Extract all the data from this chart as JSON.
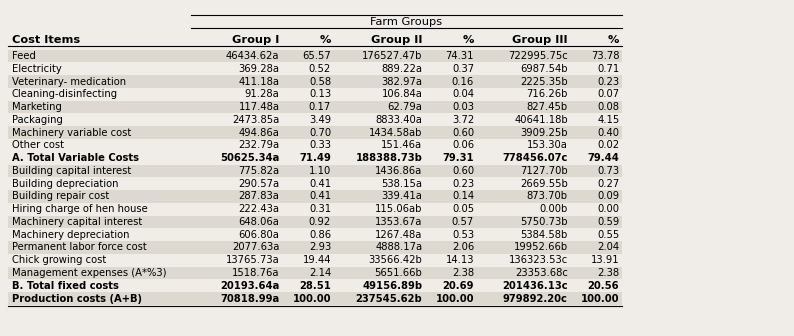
{
  "title": "Farm Groups",
  "col_headers": [
    "Cost Items",
    "Group I",
    "%",
    "Group II",
    "%",
    "Group III",
    "%"
  ],
  "rows": [
    [
      "Feed",
      "46434.62a",
      "65.57",
      "176527.47b",
      "74.31",
      "722995.75c",
      "73.78"
    ],
    [
      "Electricity",
      "369.28a",
      "0.52",
      "889.22a",
      "0.37",
      "6987.54b",
      "0.71"
    ],
    [
      "Veterinary- medication",
      "411.18a",
      "0.58",
      "382.97a",
      "0.16",
      "2225.35b",
      "0.23"
    ],
    [
      "Cleaning-disinfecting",
      "91.28a",
      "0.13",
      "106.84a",
      "0.04",
      "716.26b",
      "0.07"
    ],
    [
      "Marketing",
      "117.48a",
      "0.17",
      "62.79a",
      "0.03",
      "827.45b",
      "0.08"
    ],
    [
      "Packaging",
      "2473.85a",
      "3.49",
      "8833.40a",
      "3.72",
      "40641.18b",
      "4.15"
    ],
    [
      "Machinery variable cost",
      "494.86a",
      "0.70",
      "1434.58ab",
      "0.60",
      "3909.25b",
      "0.40"
    ],
    [
      "Other cost",
      "232.79a",
      "0.33",
      "151.46a",
      "0.06",
      "153.30a",
      "0.02"
    ],
    [
      "A. Total Variable Costs",
      "50625.34a",
      "71.49",
      "188388.73b",
      "79.31",
      "778456.07c",
      "79.44"
    ],
    [
      "Building capital interest",
      "775.82a",
      "1.10",
      "1436.86a",
      "0.60",
      "7127.70b",
      "0.73"
    ],
    [
      "Building depreciation",
      "290.57a",
      "0.41",
      "538.15a",
      "0.23",
      "2669.55b",
      "0.27"
    ],
    [
      "Building repair cost",
      "287.83a",
      "0.41",
      "339.41a",
      "0.14",
      "873.70b",
      "0.09"
    ],
    [
      "Hiring charge of hen house",
      "222.43a",
      "0.31",
      "115.06ab",
      "0.05",
      "0.00b",
      "0.00"
    ],
    [
      "Machinery capital interest",
      "648.06a",
      "0.92",
      "1353.67a",
      "0.57",
      "5750.73b",
      "0.59"
    ],
    [
      "Machinery depreciation",
      "606.80a",
      "0.86",
      "1267.48a",
      "0.53",
      "5384.58b",
      "0.55"
    ],
    [
      "Permanent labor force cost",
      "2077.63a",
      "2.93",
      "4888.17a",
      "2.06",
      "19952.66b",
      "2.04"
    ],
    [
      "Chick growing cost",
      "13765.73a",
      "19.44",
      "33566.42b",
      "14.13",
      "136323.53c",
      "13.91"
    ],
    [
      "Management expenses (A*%3)",
      "1518.76a",
      "2.14",
      "5651.66b",
      "2.38",
      "23353.68c",
      "2.38"
    ],
    [
      "B. Total fixed costs",
      "20193.64a",
      "28.51",
      "49156.89b",
      "20.69",
      "201436.13c",
      "20.56"
    ],
    [
      "Production costs (A+B)",
      "70818.99a",
      "100.00",
      "237545.62b",
      "100.00",
      "979892.20c",
      "100.00"
    ]
  ],
  "bold_rows": [
    8,
    18,
    19
  ],
  "shaded_rows": [
    0,
    2,
    4,
    6,
    9,
    11,
    13,
    15,
    17,
    19
  ],
  "bg_color": "#f0ede8",
  "shade_color": "#ddd8d0",
  "font_size": 7.2,
  "header_font_size": 8.2
}
